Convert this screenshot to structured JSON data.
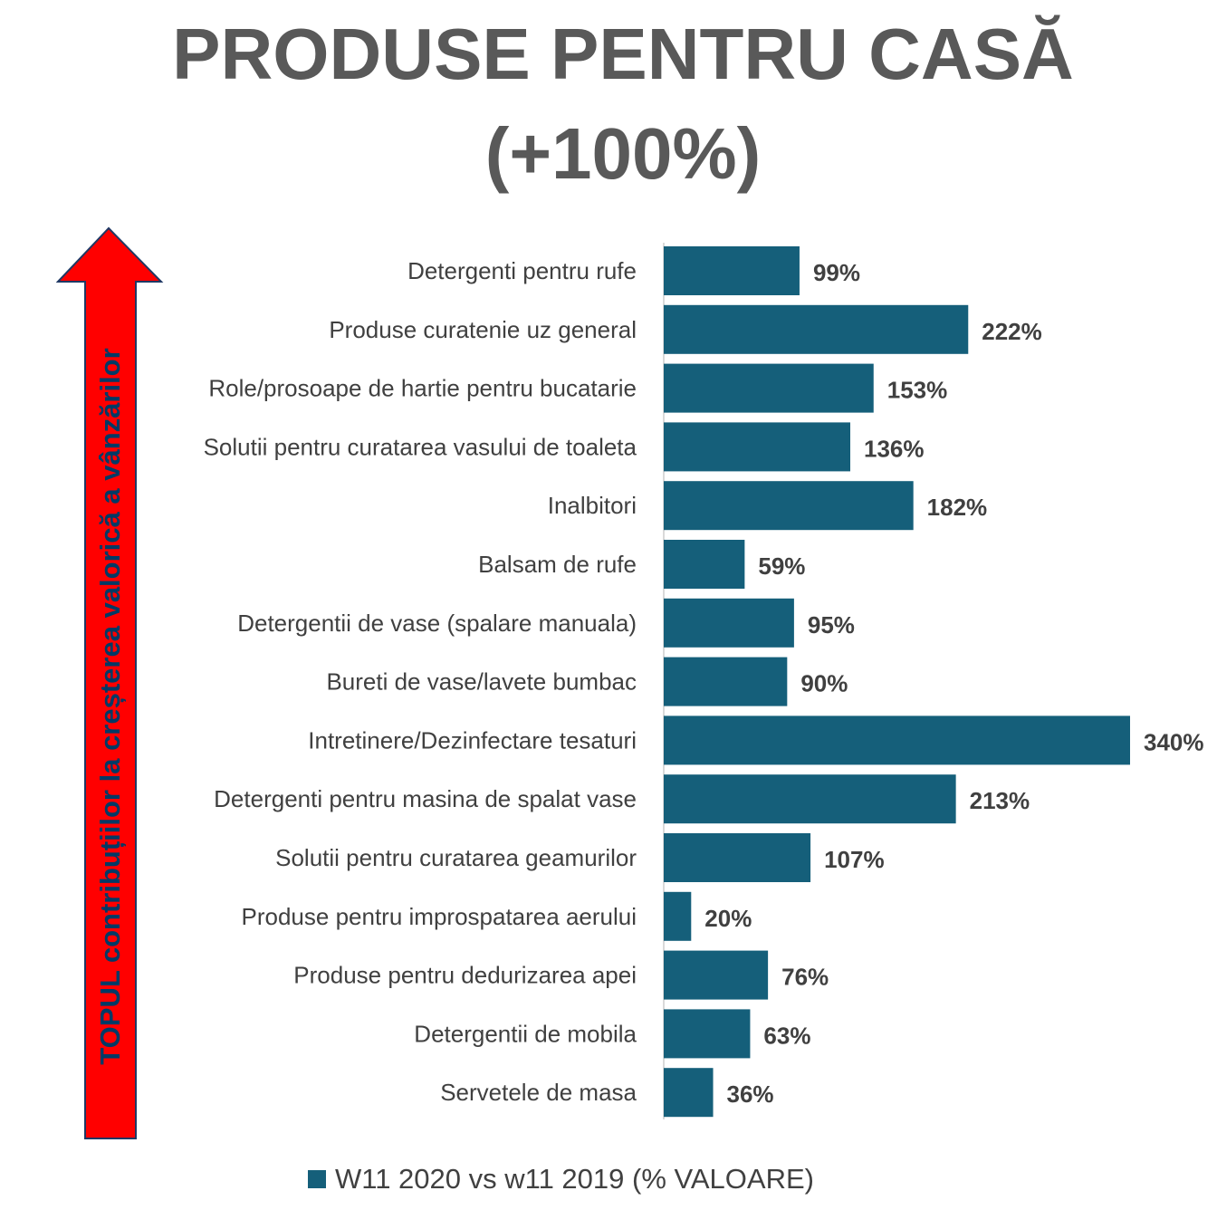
{
  "header": {
    "title_line1": "PRODUSE PENTRU CASĂ",
    "title_line2": "(+100%)"
  },
  "side_arrow": {
    "label": "TOPUL contribuțiilor la creșterea valorică a vânzărilor",
    "fill_color": "#ff0000",
    "outline_color": "#1f3864"
  },
  "chart_data": {
    "type": "bar",
    "orientation": "horizontal",
    "title": "PRODUSE PENTRU CASĂ (+100%)",
    "categories": [
      "Detergenti pentru rufe",
      "Produse curatenie uz general",
      "Role/prosoape de hartie pentru bucatarie",
      "Solutii pentru curatarea vasului de toaleta",
      "Inalbitori",
      "Balsam de rufe",
      "Detergentii de vase (spalare manuala)",
      "Bureti de vase/lavete bumbac",
      "Intretinere/Dezinfectare tesaturi",
      "Detergenti pentru masina de spalat vase",
      "Solutii pentru curatarea geamurilor",
      "Produse pentru improspatarea aerului",
      "Produse pentru dedurizarea apei",
      "Detergentii de mobila",
      "Servetele de masa"
    ],
    "series": [
      {
        "name": "W11 2020 vs w11 2019 (% VALOARE)",
        "values": [
          99,
          222,
          153,
          136,
          182,
          59,
          95,
          90,
          340,
          213,
          107,
          20,
          76,
          63,
          36
        ],
        "labels": [
          "99%",
          "222%",
          "153%",
          "136%",
          "182%",
          "59%",
          "95%",
          "90%",
          "340%",
          "213%",
          "107%",
          "20%",
          "76%",
          "63%",
          "36%"
        ]
      }
    ],
    "xlim": [
      0,
      340
    ],
    "unit": "%",
    "bar_color": "#155f7a",
    "legend_position": "bottom",
    "grid": false
  }
}
